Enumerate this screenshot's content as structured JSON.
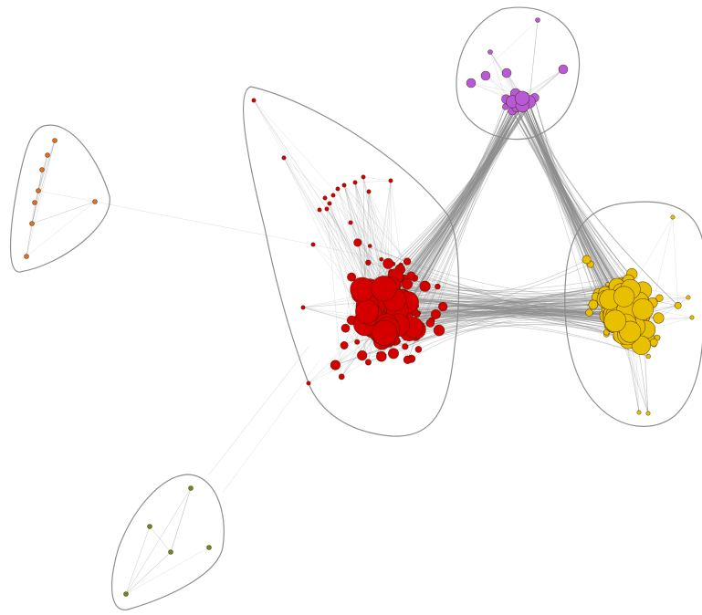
{
  "graph": {
    "edge_color": "#8c8c8c",
    "hull_stroke": "#8f8f8f",
    "clusters": [
      {
        "id": "orange",
        "fill": "#e0701f",
        "node_count": 8
      },
      {
        "id": "red",
        "fill": "#d40000",
        "node_count": 200
      },
      {
        "id": "purple",
        "fill": "#b85ad6",
        "node_count": 20
      },
      {
        "id": "yellow",
        "fill": "#e8c000",
        "node_count": 150
      },
      {
        "id": "green",
        "fill": "#6e8a1e",
        "node_count": 5
      }
    ]
  }
}
